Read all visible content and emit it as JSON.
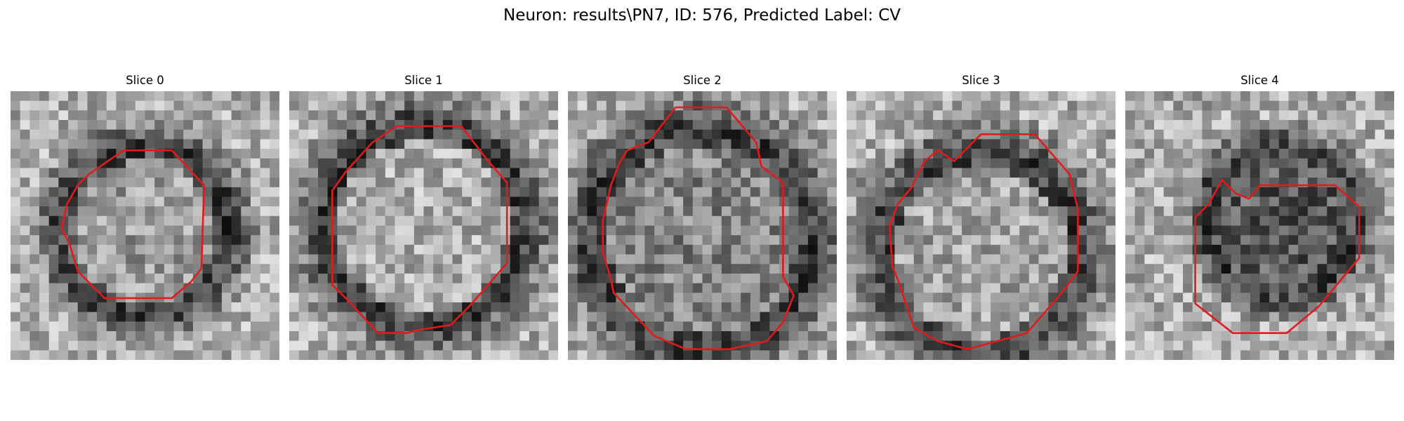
{
  "figure": {
    "title": "Neuron: results\\PN7, ID: 576, Predicted Label: CV"
  },
  "contour_color": "#e31a1c",
  "slices": [
    {
      "title": "Slice 0",
      "seed": 11,
      "dark_center": [
        0.5,
        0.52
      ],
      "dark_radius": 0.38,
      "inner_bright": 0.6,
      "contour": [
        [
          0.42,
          0.22
        ],
        [
          0.6,
          0.22
        ],
        [
          0.72,
          0.35
        ],
        [
          0.71,
          0.66
        ],
        [
          0.67,
          0.71
        ],
        [
          0.6,
          0.77
        ],
        [
          0.35,
          0.77
        ],
        [
          0.25,
          0.67
        ],
        [
          0.22,
          0.57
        ],
        [
          0.19,
          0.51
        ],
        [
          0.21,
          0.42
        ],
        [
          0.25,
          0.35
        ],
        [
          0.29,
          0.31
        ],
        [
          0.42,
          0.22
        ]
      ]
    },
    {
      "title": "Slice 1",
      "seed": 23,
      "dark_center": [
        0.5,
        0.5
      ],
      "dark_radius": 0.45,
      "inner_bright": 0.72,
      "contour": [
        [
          0.4,
          0.13
        ],
        [
          0.64,
          0.13
        ],
        [
          0.74,
          0.26
        ],
        [
          0.81,
          0.34
        ],
        [
          0.81,
          0.64
        ],
        [
          0.67,
          0.8
        ],
        [
          0.6,
          0.87
        ],
        [
          0.47,
          0.89
        ],
        [
          0.44,
          0.9
        ],
        [
          0.33,
          0.9
        ],
        [
          0.22,
          0.78
        ],
        [
          0.16,
          0.72
        ],
        [
          0.16,
          0.37
        ],
        [
          0.21,
          0.3
        ],
        [
          0.31,
          0.19
        ],
        [
          0.4,
          0.13
        ]
      ]
    },
    {
      "title": "Slice 2",
      "seed": 37,
      "dark_center": [
        0.5,
        0.55
      ],
      "dark_radius": 0.5,
      "inner_bright": 0.45,
      "contour": [
        [
          0.4,
          0.06
        ],
        [
          0.59,
          0.06
        ],
        [
          0.7,
          0.19
        ],
        [
          0.72,
          0.28
        ],
        [
          0.8,
          0.34
        ],
        [
          0.8,
          0.69
        ],
        [
          0.84,
          0.76
        ],
        [
          0.8,
          0.86
        ],
        [
          0.74,
          0.93
        ],
        [
          0.6,
          0.96
        ],
        [
          0.44,
          0.96
        ],
        [
          0.32,
          0.91
        ],
        [
          0.17,
          0.75
        ],
        [
          0.16,
          0.7
        ],
        [
          0.13,
          0.6
        ],
        [
          0.13,
          0.48
        ],
        [
          0.16,
          0.35
        ],
        [
          0.19,
          0.27
        ],
        [
          0.22,
          0.22
        ],
        [
          0.3,
          0.19
        ],
        [
          0.4,
          0.06
        ]
      ]
    },
    {
      "title": "Slice 3",
      "seed": 51,
      "dark_center": [
        0.5,
        0.6
      ],
      "dark_radius": 0.45,
      "inner_bright": 0.65,
      "contour": [
        [
          0.5,
          0.16
        ],
        [
          0.7,
          0.16
        ],
        [
          0.83,
          0.31
        ],
        [
          0.86,
          0.44
        ],
        [
          0.86,
          0.67
        ],
        [
          0.8,
          0.75
        ],
        [
          0.67,
          0.9
        ],
        [
          0.45,
          0.96
        ],
        [
          0.34,
          0.93
        ],
        [
          0.25,
          0.88
        ],
        [
          0.21,
          0.76
        ],
        [
          0.19,
          0.7
        ],
        [
          0.17,
          0.65
        ],
        [
          0.16,
          0.5
        ],
        [
          0.19,
          0.42
        ],
        [
          0.24,
          0.36
        ],
        [
          0.29,
          0.26
        ],
        [
          0.34,
          0.22
        ],
        [
          0.4,
          0.26
        ],
        [
          0.5,
          0.16
        ]
      ]
    },
    {
      "title": "Slice 4",
      "seed": 67,
      "dark_center": [
        0.58,
        0.48
      ],
      "dark_radius": 0.34,
      "inner_bright": 0.18,
      "contour": [
        [
          0.51,
          0.35
        ],
        [
          0.5,
          0.35
        ],
        [
          0.46,
          0.4
        ],
        [
          0.41,
          0.38
        ],
        [
          0.36,
          0.33
        ],
        [
          0.31,
          0.42
        ],
        [
          0.26,
          0.47
        ],
        [
          0.26,
          0.79
        ],
        [
          0.4,
          0.9
        ],
        [
          0.6,
          0.9
        ],
        [
          0.72,
          0.8
        ],
        [
          0.87,
          0.62
        ],
        [
          0.87,
          0.43
        ],
        [
          0.78,
          0.35
        ],
        [
          0.51,
          0.35
        ]
      ]
    }
  ]
}
